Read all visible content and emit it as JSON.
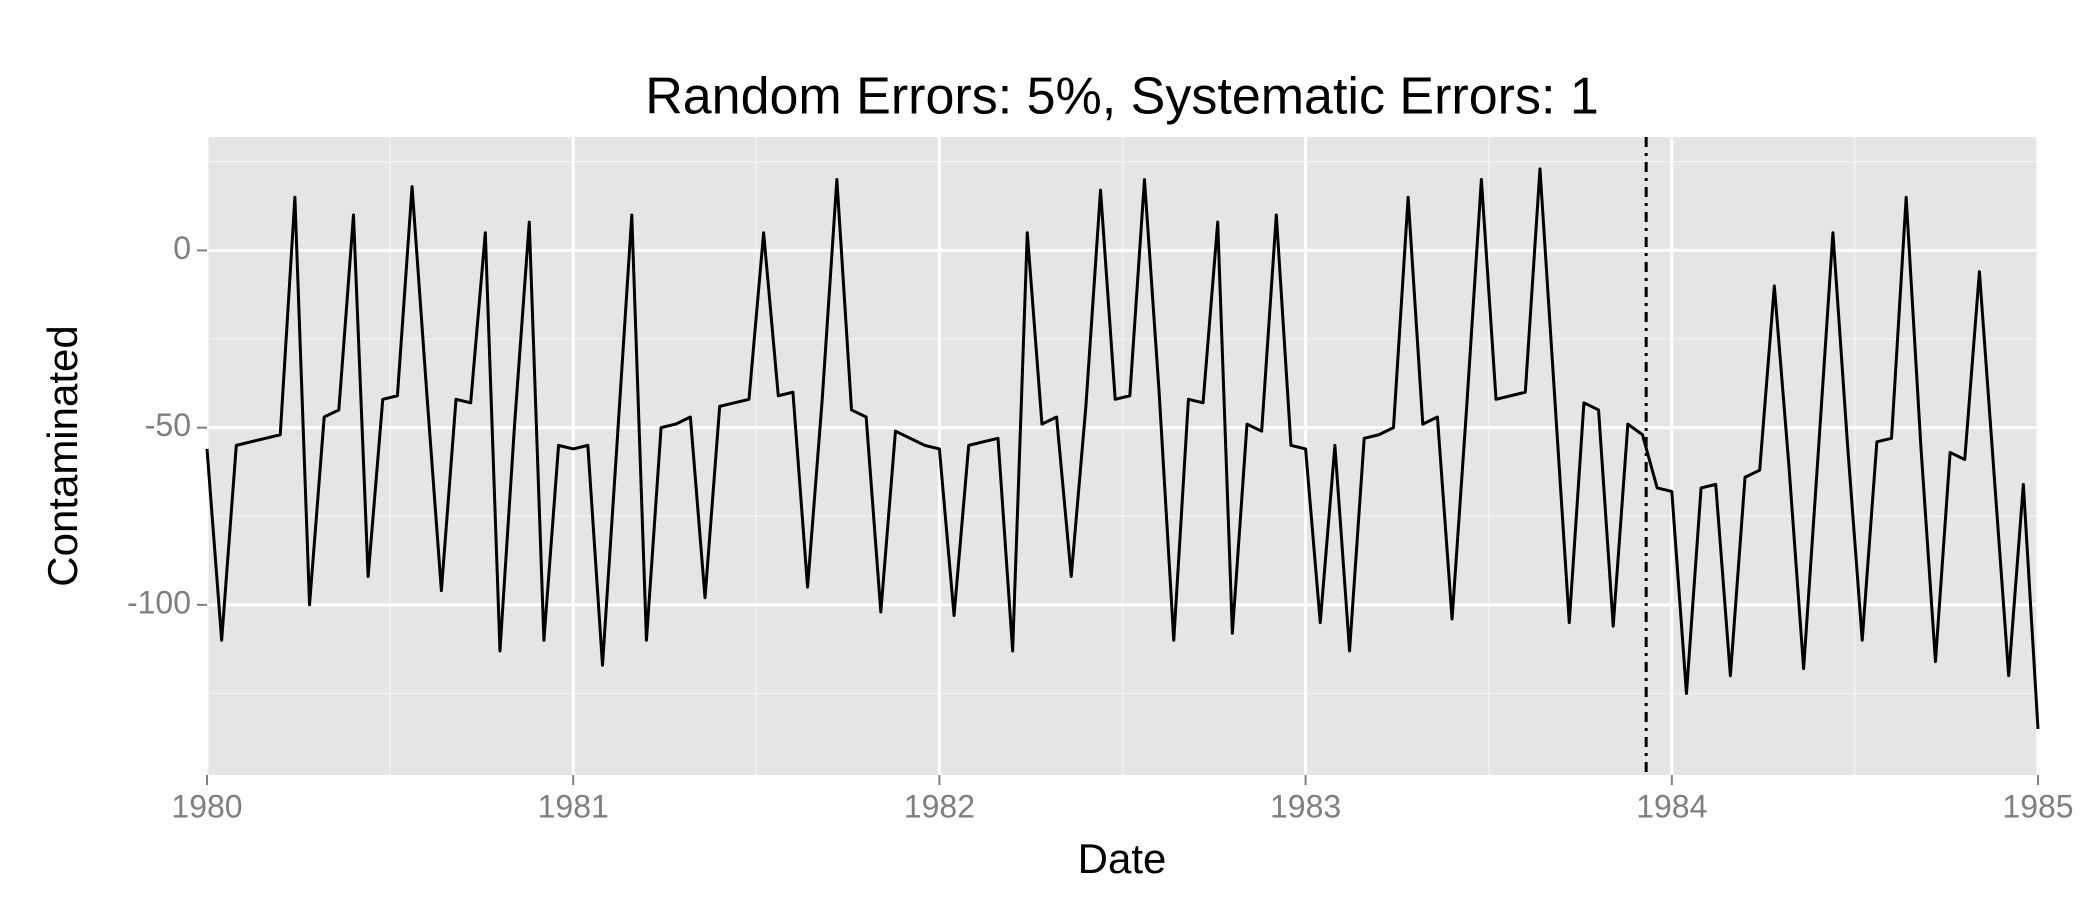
{
  "chart_data": {
    "type": "line",
    "title": "Random Errors: 5%, Systematic Errors: 1",
    "x_label": "Date",
    "y_label": "Contaminated",
    "xlim": [
      1980,
      1985
    ],
    "xticks": [
      1980,
      1981,
      1982,
      1983,
      1984,
      1985
    ],
    "xminor": [
      1980.5,
      1981.5,
      1982.5,
      1983.5,
      1984.5
    ],
    "ylim": [
      -148,
      32
    ],
    "yticks": [
      -100,
      -50,
      0
    ],
    "yminor": [
      -125,
      -75,
      -25,
      25
    ],
    "grid": true,
    "vline": 1983.93,
    "series": [
      {
        "color": "#000000",
        "x": [
          1980,
          1980.04,
          1980.08,
          1980.12,
          1980.16,
          1980.2,
          1980.24,
          1980.28,
          1980.32,
          1980.36,
          1980.4,
          1980.44,
          1980.48,
          1980.52,
          1980.56,
          1980.6,
          1980.64,
          1980.68,
          1980.72,
          1980.76,
          1980.8,
          1980.84,
          1980.88,
          1980.92,
          1980.96,
          1981,
          1981.04,
          1981.08,
          1981.12,
          1981.16,
          1981.2,
          1981.24,
          1981.28,
          1981.32,
          1981.36,
          1981.4,
          1981.44,
          1981.48,
          1981.52,
          1981.56,
          1981.6,
          1981.64,
          1981.68,
          1981.72,
          1981.76,
          1981.8,
          1981.84,
          1981.88,
          1981.92,
          1981.96,
          1982,
          1982.04,
          1982.08,
          1982.12,
          1982.16,
          1982.2,
          1982.24,
          1982.28,
          1982.32,
          1982.36,
          1982.4,
          1982.44,
          1982.48,
          1982.52,
          1982.56,
          1982.6,
          1982.64,
          1982.68,
          1982.72,
          1982.76,
          1982.8,
          1982.84,
          1982.88,
          1982.92,
          1982.96,
          1983,
          1983.04,
          1983.08,
          1983.12,
          1983.16,
          1983.2,
          1983.24,
          1983.28,
          1983.32,
          1983.36,
          1983.4,
          1983.44,
          1983.48,
          1983.52,
          1983.56,
          1983.6,
          1983.64,
          1983.68,
          1983.72,
          1983.76,
          1983.8,
          1983.84,
          1983.88,
          1983.92,
          1983.96,
          1984,
          1984.04,
          1984.08,
          1984.12,
          1984.16,
          1984.2,
          1984.24,
          1984.28,
          1984.32,
          1984.36,
          1984.4,
          1984.44,
          1984.48,
          1984.52,
          1984.56,
          1984.6,
          1984.64,
          1984.68,
          1984.72,
          1984.76,
          1984.8,
          1984.84,
          1984.88,
          1984.92,
          1984.96,
          1985
        ],
        "values": [
          -56,
          -110,
          -55,
          -54,
          -53,
          -52,
          15,
          -100,
          -47,
          -45,
          10,
          -92,
          -42,
          -41,
          18,
          -40,
          -96,
          -42,
          -43,
          5,
          -113,
          -49,
          8,
          -110,
          -55,
          -56,
          -55,
          -117,
          -54,
          10,
          -110,
          -50,
          -49,
          -47,
          -98,
          -44,
          -43,
          -42,
          5,
          -41,
          -40,
          -95,
          -42,
          20,
          -45,
          -47,
          -102,
          -51,
          -53,
          -55,
          -56,
          -103,
          -55,
          -54,
          -53,
          -113,
          5,
          -49,
          -47,
          -92,
          -44,
          17,
          -42,
          -41,
          20,
          -40,
          -110,
          -42,
          -43,
          8,
          -108,
          -49,
          -51,
          10,
          -55,
          -56,
          -105,
          -55,
          -113,
          -53,
          -52,
          -50,
          15,
          -49,
          -47,
          -104,
          -44,
          20,
          -42,
          -41,
          -40,
          23,
          -41,
          -105,
          -43,
          -45,
          -106,
          -49,
          -52,
          -67,
          -68,
          -125,
          -67,
          -66,
          -120,
          -64,
          -62,
          -10,
          -61,
          -118,
          -57,
          5,
          -55,
          -110,
          -54,
          -53,
          15,
          -55,
          -116,
          -57,
          -59,
          -6,
          -63,
          -120,
          -66,
          -135
        ]
      }
    ]
  }
}
